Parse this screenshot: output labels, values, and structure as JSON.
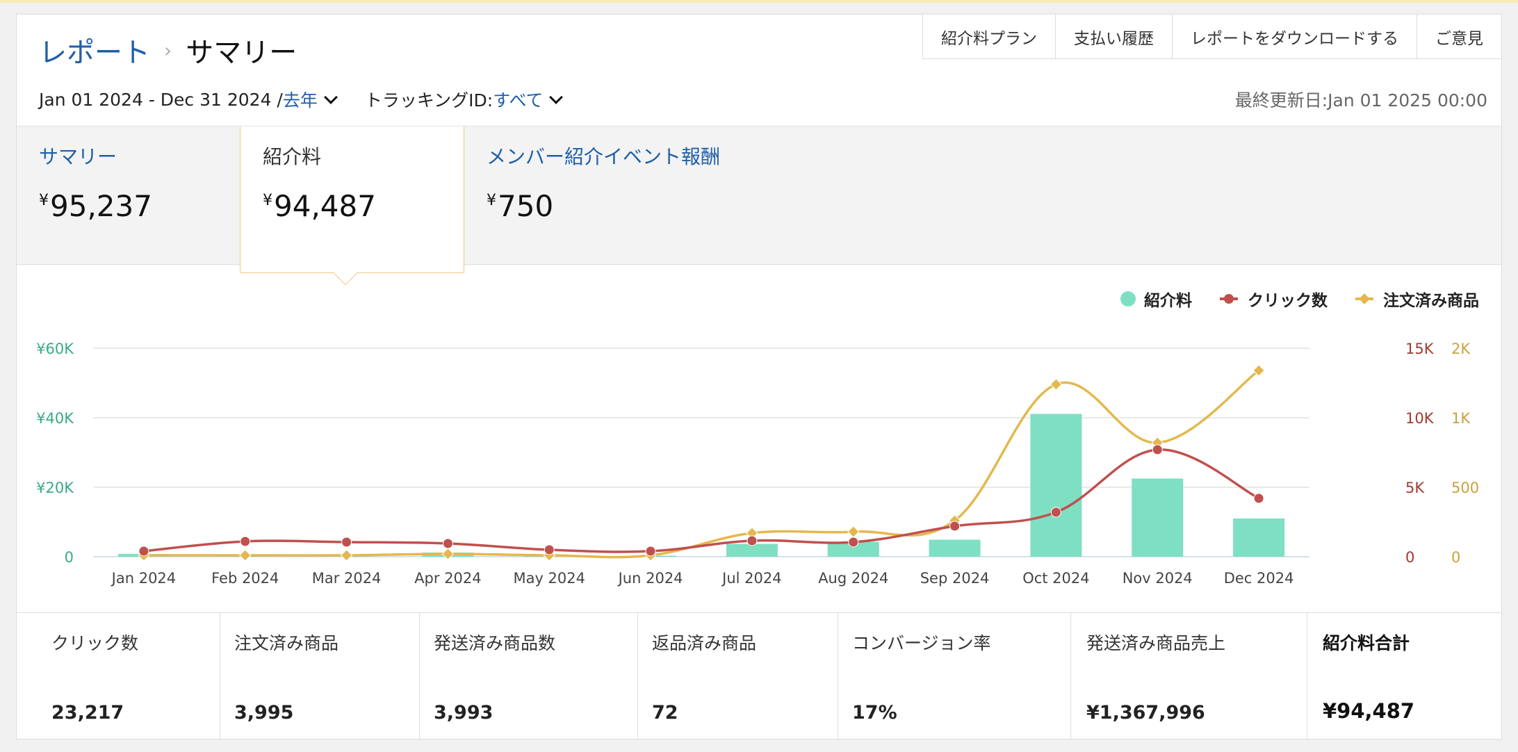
{
  "header": {
    "breadcrumb_root": "レポート",
    "breadcrumb_sep": "›",
    "breadcrumb_current": "サマリー",
    "nav": [
      "紹介料プラン",
      "支払い履歴",
      "レポートをダウンロードする",
      "ご意見"
    ],
    "date_range": "Jan 01 2024 - Dec 31 2024 /",
    "period": "去年",
    "tracking_label": "トラッキングID:",
    "tracking_value": "すべて",
    "last_updated": "最終更新日:Jan 01 2025 00:00"
  },
  "tabs": [
    {
      "label": "サマリー",
      "currency": "¥",
      "value": "95,237"
    },
    {
      "label": "紹介料",
      "currency": "¥",
      "value": "94,487"
    },
    {
      "label": "メンバー紹介イベント報酬",
      "currency": "¥",
      "value": "750"
    }
  ],
  "colors": {
    "fee": "#7fdfc3",
    "clicks": "#c0504d",
    "ordered": "#e4b84c",
    "axis_left": "#3aa886",
    "axis_mid": "#a33a2f",
    "axis_right": "#c9a23c"
  },
  "chart_data": {
    "type": "bar",
    "categories": [
      "Jan 2024",
      "Feb 2024",
      "Mar 2024",
      "Apr 2024",
      "May 2024",
      "Jun 2024",
      "Jul 2024",
      "Aug 2024",
      "Sep 2024",
      "Oct 2024",
      "Nov 2024",
      "Dec 2024"
    ],
    "series": [
      {
        "name": "紹介料",
        "type": "bar",
        "axis": "left",
        "values": [
          800,
          400,
          400,
          1200,
          300,
          300,
          3700,
          4300,
          4900,
          41100,
          22500,
          11000
        ]
      },
      {
        "name": "クリック数",
        "type": "line",
        "axis": "mid",
        "values": [
          400,
          1100,
          1050,
          950,
          500,
          400,
          1150,
          1050,
          2200,
          3200,
          7700,
          4200
        ]
      },
      {
        "name": "注文済み商品",
        "type": "line",
        "axis": "right",
        "values": [
          10,
          10,
          10,
          20,
          10,
          10,
          170,
          180,
          260,
          1240,
          820,
          1340
        ]
      }
    ],
    "left_axis": {
      "ticks": [
        "0",
        "¥20K",
        "¥40K",
        "¥60K"
      ],
      "range": [
        0,
        60000
      ]
    },
    "mid_axis": {
      "ticks": [
        "0",
        "5K",
        "10K",
        "15K"
      ],
      "range": [
        0,
        15000
      ]
    },
    "right_axis": {
      "ticks": [
        "0",
        "500",
        "1K",
        "2K"
      ],
      "values": [
        0,
        500,
        1000,
        1500
      ],
      "range": [
        0,
        1500
      ]
    },
    "legend": [
      "紹介料",
      "クリック数",
      "注文済み商品"
    ],
    "legend_position": "top-right",
    "grid": true
  },
  "stats": [
    {
      "label": "クリック数",
      "value": "23,217"
    },
    {
      "label": "注文済み商品",
      "value": "3,995"
    },
    {
      "label": "発送済み商品数",
      "value": "3,993"
    },
    {
      "label": "返品済み商品",
      "value": "72"
    },
    {
      "label": "コンバージョン率",
      "value": "17%"
    },
    {
      "label": "発送済み商品売上",
      "value": "¥1,367,996"
    },
    {
      "label": "紹介料合計",
      "value": "¥94,487"
    }
  ]
}
